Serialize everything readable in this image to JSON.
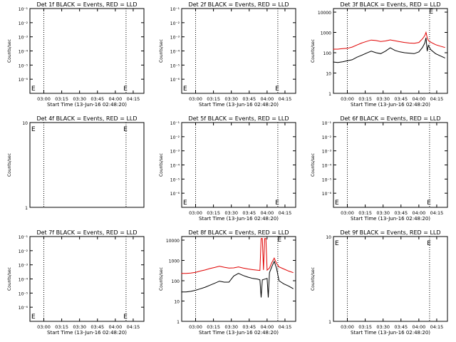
{
  "figure": {
    "panels": [
      {
        "title": "Det 1f BLACK = Events, RED = LLD",
        "ylabel": "Counts/sec",
        "xlabel": "Start Time (13-Jun-16 02:48:20)",
        "y_ticks": [
          "10⁻¹",
          "10⁻²",
          "10⁻³",
          "10⁻⁴",
          "10⁻⁵",
          "10⁻⁶"
        ],
        "x_ticks": [
          "03:00",
          "03:15",
          "03:30",
          "03:45",
          "04:00",
          "04:15"
        ],
        "marker_labels": [
          "E",
          "E"
        ]
      },
      {
        "title": "Det 2f BLACK = Events, RED = LLD",
        "ylabel": "Counts/sec",
        "xlabel": "Start Time (13-Jun-16 02:48:20)",
        "y_ticks": [
          "10⁻¹",
          "10⁻²",
          "10⁻³",
          "10⁻⁴",
          "10⁻⁵",
          "10⁻⁶"
        ],
        "x_ticks": [
          "03:00",
          "03:15",
          "03:30",
          "03:45",
          "04:00",
          "04:15"
        ],
        "marker_labels": [
          "E",
          "E"
        ]
      },
      {
        "title": "Det 3f BLACK = Events, RED = LLD",
        "ylabel": "Counts/sec",
        "xlabel": "Start Time (13-Jun-16 02:48:20)",
        "y_ticks": [
          "1",
          "10",
          "100",
          "1000",
          "10000"
        ],
        "x_ticks": [
          "03:00",
          "03:15",
          "03:30",
          "03:45",
          "04:00",
          "04:15"
        ],
        "marker_labels": [
          "E"
        ]
      },
      {
        "title": "Det 4f BLACK = Events, RED = LLD",
        "ylabel": "Counts/sec",
        "xlabel": "",
        "y_ticks": [
          "1",
          "10"
        ],
        "x_ticks": [],
        "marker_labels": [
          "E",
          "E"
        ]
      },
      {
        "title": "Det 5f BLACK = Events, RED = LLD",
        "ylabel": "Counts/sec",
        "xlabel": "Start Time (13-Jun-16 02:48:20)",
        "y_ticks": [
          "10⁻¹",
          "10⁻²",
          "10⁻³",
          "10⁻⁴",
          "10⁻⁵",
          "10⁻⁶"
        ],
        "x_ticks": [
          "03:00",
          "03:15",
          "03:30",
          "03:45",
          "04:00",
          "04:15"
        ],
        "marker_labels": [
          "E",
          "E"
        ]
      },
      {
        "title": "Det 6f BLACK = Events, RED = LLD",
        "ylabel": "Counts/sec",
        "xlabel": "Start Time (13-Jun-16 02:48:20)",
        "y_ticks": [
          "10⁻¹",
          "10⁻²",
          "10⁻³",
          "10⁻⁴",
          "10⁻⁵",
          "10⁻⁶"
        ],
        "x_ticks": [
          "03:00",
          "03:15",
          "03:30",
          "03:45",
          "04:00",
          "04:15"
        ],
        "marker_labels": [
          "E",
          "E"
        ]
      },
      {
        "title": "Det 7f BLACK = Events, RED = LLD",
        "ylabel": "Counts/sec",
        "xlabel": "Start Time (13-Jun-16 02:48:20)",
        "y_ticks": [
          "10⁻¹",
          "10⁻²",
          "10⁻³",
          "10⁻⁴",
          "10⁻⁵",
          "10⁻⁶"
        ],
        "x_ticks": [
          "03:00",
          "03:15",
          "03:30",
          "03:45",
          "04:00",
          "04:15"
        ],
        "marker_labels": [
          "E",
          "E"
        ]
      },
      {
        "title": "Det 8f BLACK = Events, RED = LLD",
        "ylabel": "Counts/sec",
        "xlabel": "Start Time (13-Jun-16 02:48:20)",
        "y_ticks": [
          "1",
          "10",
          "100",
          "1000",
          "10000"
        ],
        "x_ticks": [
          "03:00",
          "03:15",
          "03:30",
          "03:45",
          "04:00",
          "04:15"
        ],
        "marker_labels": [
          "E"
        ]
      },
      {
        "title": "Det 9f BLACK = Events, RED = LLD",
        "ylabel": "Counts/sec",
        "xlabel": "Start Time (13-Jun-16 02:48:20)",
        "y_ticks": [
          "1",
          "10"
        ],
        "x_ticks": [
          "03:00",
          "03:15",
          "03:30",
          "03:45",
          "04:00",
          "04:15"
        ],
        "marker_labels": [
          "E",
          "E"
        ]
      }
    ]
  },
  "colors": {
    "events": "#000000",
    "lld": "#e00000",
    "axes": "#000000"
  },
  "chart_data": [
    {
      "panel": "Det 1f",
      "type": "line",
      "x_range": [
        "02:48:20",
        "04:24"
      ],
      "ylim": [
        1e-07,
        0.1
      ],
      "log_y": true,
      "vertical_lines": [
        "03:00",
        "04:09"
      ],
      "series": []
    },
    {
      "panel": "Det 2f",
      "type": "line",
      "x_range": [
        "02:48:20",
        "04:24"
      ],
      "ylim": [
        1e-07,
        0.1
      ],
      "log_y": true,
      "vertical_lines": [
        "03:00",
        "04:09"
      ],
      "series": []
    },
    {
      "panel": "Det 3f",
      "type": "line",
      "x_range": [
        "02:48:20",
        "04:24"
      ],
      "ylim": [
        1,
        15000
      ],
      "log_y": true,
      "vertical_lines": [
        "03:00",
        "04:09"
      ],
      "series": [
        {
          "color": "#e00000",
          "x": [
            "02:48",
            "02:52",
            "02:56",
            "03:00",
            "03:04",
            "03:08",
            "03:12",
            "03:16",
            "03:20",
            "03:24",
            "03:28",
            "03:32",
            "03:36",
            "03:40",
            "03:44",
            "03:48",
            "03:52",
            "03:56",
            "04:00",
            "04:03",
            "04:05",
            "04:06",
            "04:07",
            "04:08",
            "04:10",
            "04:14",
            "04:18",
            "04:22"
          ],
          "y": [
            150,
            150,
            158,
            165,
            190,
            240,
            300,
            360,
            420,
            400,
            360,
            380,
            430,
            390,
            350,
            320,
            300,
            290,
            320,
            480,
            700,
            1000,
            550,
            400,
            330,
            250,
            210,
            180
          ]
        },
        {
          "color": "#000000",
          "x": [
            "02:48",
            "02:52",
            "02:56",
            "03:00",
            "03:04",
            "03:08",
            "03:12",
            "03:16",
            "03:20",
            "03:24",
            "03:28",
            "03:32",
            "03:36",
            "03:40",
            "03:44",
            "03:48",
            "03:52",
            "03:56",
            "04:00",
            "04:03",
            "04:05",
            "04:06",
            "04:07",
            "04:08",
            "04:10",
            "04:14",
            "04:18",
            "04:22"
          ],
          "y": [
            35,
            33,
            36,
            40,
            45,
            60,
            75,
            95,
            120,
            100,
            90,
            120,
            175,
            130,
            110,
            100,
            95,
            90,
            110,
            180,
            300,
            550,
            120,
            230,
            140,
            90,
            70,
            55
          ]
        }
      ]
    },
    {
      "panel": "Det 4f",
      "type": "line",
      "x_range": [
        "02:48:20",
        "04:24"
      ],
      "ylim": [
        1,
        10
      ],
      "log_y": true,
      "vertical_lines": [
        "03:00",
        "04:09"
      ],
      "series": []
    },
    {
      "panel": "Det 5f",
      "type": "line",
      "x_range": [
        "02:48:20",
        "04:24"
      ],
      "ylim": [
        1e-07,
        0.1
      ],
      "log_y": true,
      "vertical_lines": [
        "03:00",
        "04:09"
      ],
      "series": []
    },
    {
      "panel": "Det 6f",
      "type": "line",
      "x_range": [
        "02:48:20",
        "04:24"
      ],
      "ylim": [
        1e-07,
        0.1
      ],
      "log_y": true,
      "vertical_lines": [
        "03:00",
        "04:09"
      ],
      "series": []
    },
    {
      "panel": "Det 7f",
      "type": "line",
      "x_range": [
        "02:48:20",
        "04:24"
      ],
      "ylim": [
        1e-07,
        0.1
      ],
      "log_y": true,
      "vertical_lines": [
        "03:00",
        "04:09"
      ],
      "series": []
    },
    {
      "panel": "Det 8f",
      "type": "line",
      "x_range": [
        "02:48:20",
        "04:24"
      ],
      "ylim": [
        1,
        15000
      ],
      "log_y": true,
      "vertical_lines": [
        "03:00",
        "04:09"
      ],
      "series": [
        {
          "color": "#e00000",
          "x": [
            "02:48",
            "02:52",
            "02:56",
            "03:00",
            "03:04",
            "03:08",
            "03:12",
            "03:16",
            "03:20",
            "03:24",
            "03:28",
            "03:32",
            "03:36",
            "03:40",
            "03:44",
            "03:48",
            "03:52",
            "03:54",
            "03:55",
            "03:56",
            "03:57",
            "03:58",
            "03:59",
            "04:00",
            "04:02",
            "04:04",
            "04:06",
            "04:08",
            "04:10",
            "04:14",
            "04:18",
            "04:22"
          ],
          "y": [
            230,
            230,
            240,
            260,
            300,
            340,
            400,
            450,
            520,
            460,
            420,
            430,
            480,
            420,
            380,
            350,
            330,
            320,
            12000,
            12000,
            340,
            12000,
            12000,
            330,
            420,
            800,
            1300,
            700,
            480,
            380,
            300,
            250
          ]
        },
        {
          "color": "#000000",
          "x": [
            "02:48",
            "02:52",
            "02:56",
            "03:00",
            "03:04",
            "03:08",
            "03:12",
            "03:16",
            "03:20",
            "03:24",
            "03:28",
            "03:32",
            "03:36",
            "03:40",
            "03:44",
            "03:48",
            "03:52",
            "03:54",
            "03:55",
            "03:56",
            "03:58",
            "04:00",
            "04:01",
            "04:02",
            "04:04",
            "04:06",
            "04:08",
            "04:10",
            "04:14",
            "04:18",
            "04:22"
          ],
          "y": [
            28,
            28,
            30,
            34,
            40,
            48,
            60,
            75,
            95,
            85,
            85,
            170,
            230,
            180,
            150,
            130,
            120,
            110,
            15,
            110,
            120,
            130,
            15,
            250,
            500,
            900,
            400,
            100,
            70,
            55,
            40
          ]
        }
      ]
    },
    {
      "panel": "Det 9f",
      "type": "line",
      "x_range": [
        "02:48:20",
        "04:24"
      ],
      "ylim": [
        1,
        10
      ],
      "log_y": true,
      "vertical_lines": [
        "03:00",
        "04:09"
      ],
      "series": []
    }
  ]
}
